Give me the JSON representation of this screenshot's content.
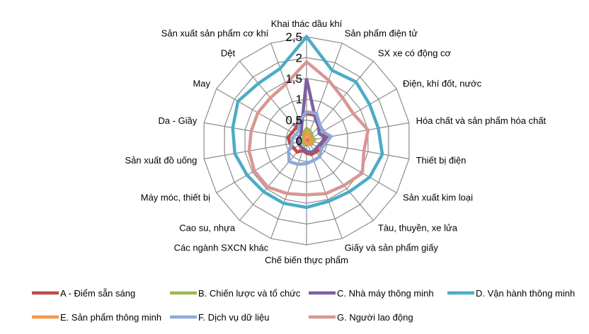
{
  "chart_data": {
    "type": "radar",
    "categories": [
      "Khai thác dầu khí",
      "Sản phẩm điện tử",
      "SX xe có động cơ",
      "Điện, khí đốt, nước",
      "Hóa chất và sản phẩm hóa chất",
      "Thiết bị điện",
      "Sản xuất kim loại",
      "Tàu, thuyền, xe lửa",
      "Giấy và sản phẩm giấy",
      "Chế biến thực phẩm",
      "Các ngành SXCN khác",
      "Cao su, nhựa",
      "Máy móc, thiết bị",
      "Sản xuất đồ uống",
      "Da - Giầy",
      "May",
      "Dệt",
      "Sản xuất sản phẩm cơ khí"
    ],
    "rlim": [
      0,
      2.5
    ],
    "ticks": [
      "0",
      "0,5",
      "1",
      "1,5",
      "2",
      "2,5"
    ],
    "tick_values": [
      0,
      0.5,
      1,
      1.5,
      2,
      2.5
    ],
    "grid": true,
    "legend_position": "bottom",
    "series": [
      {
        "name": "A - Điểm sẵn sáng",
        "color": "#be4b48",
        "values": [
          0.65,
          0.65,
          0.5,
          0.45,
          0.5,
          0.4,
          0.4,
          0.35,
          0.35,
          0.3,
          0.25,
          0.35,
          0.35,
          0.4,
          0.45,
          0.4,
          0.4,
          0.55
        ]
      },
      {
        "name": "B. Chiến lược và tổ chức",
        "color": "#98b954",
        "values": [
          0.3,
          0.25,
          0.2,
          0.15,
          0.2,
          0.15,
          0.15,
          0.1,
          0.1,
          0.1,
          0.1,
          0.1,
          0.1,
          0.1,
          0.1,
          0.1,
          0.1,
          0.2
        ]
      },
      {
        "name": "C. Nhà máy thông minh",
        "color": "#7d5fa0",
        "values": [
          1.5,
          0.6,
          0.45,
          0.35,
          0.45,
          0.35,
          0.3,
          0.3,
          0.3,
          0.25,
          0.2,
          0.2,
          0.2,
          0.2,
          0.2,
          0.2,
          0.2,
          0.35
        ]
      },
      {
        "name": "D. Vận hành thông minh",
        "color": "#4bacc6",
        "values": [
          2.5,
          1.8,
          1.85,
          1.75,
          1.75,
          1.85,
          1.75,
          1.6,
          1.55,
          1.6,
          1.6,
          1.6,
          1.65,
          1.75,
          1.8,
          1.9,
          1.8,
          1.85
        ]
      },
      {
        "name": "E. Sản phẩm thông minh",
        "color": "#f79646",
        "values": [
          0.2,
          0.15,
          0.1,
          0.1,
          0.15,
          0.1,
          0.1,
          0.1,
          0.05,
          0.05,
          0.05,
          0.05,
          0.05,
          0.05,
          0.05,
          0.05,
          0.05,
          0.1
        ]
      },
      {
        "name": "F. Dịch vụ dữ liệu",
        "color": "#8ea9db",
        "values": [
          0.7,
          0.7,
          0.5,
          0.45,
          0.6,
          0.45,
          0.4,
          0.5,
          0.5,
          0.55,
          0.6,
          0.65,
          0.5,
          0.35,
          0.35,
          0.3,
          0.3,
          0.5
        ]
      },
      {
        "name": "G. Người lao động",
        "color": "#d99694",
        "values": [
          1.9,
          1.55,
          1.35,
          1.3,
          1.5,
          1.4,
          1.55,
          1.4,
          1.35,
          1.3,
          1.35,
          1.45,
          1.45,
          1.4,
          1.35,
          1.35,
          1.35,
          1.45
        ]
      }
    ]
  }
}
